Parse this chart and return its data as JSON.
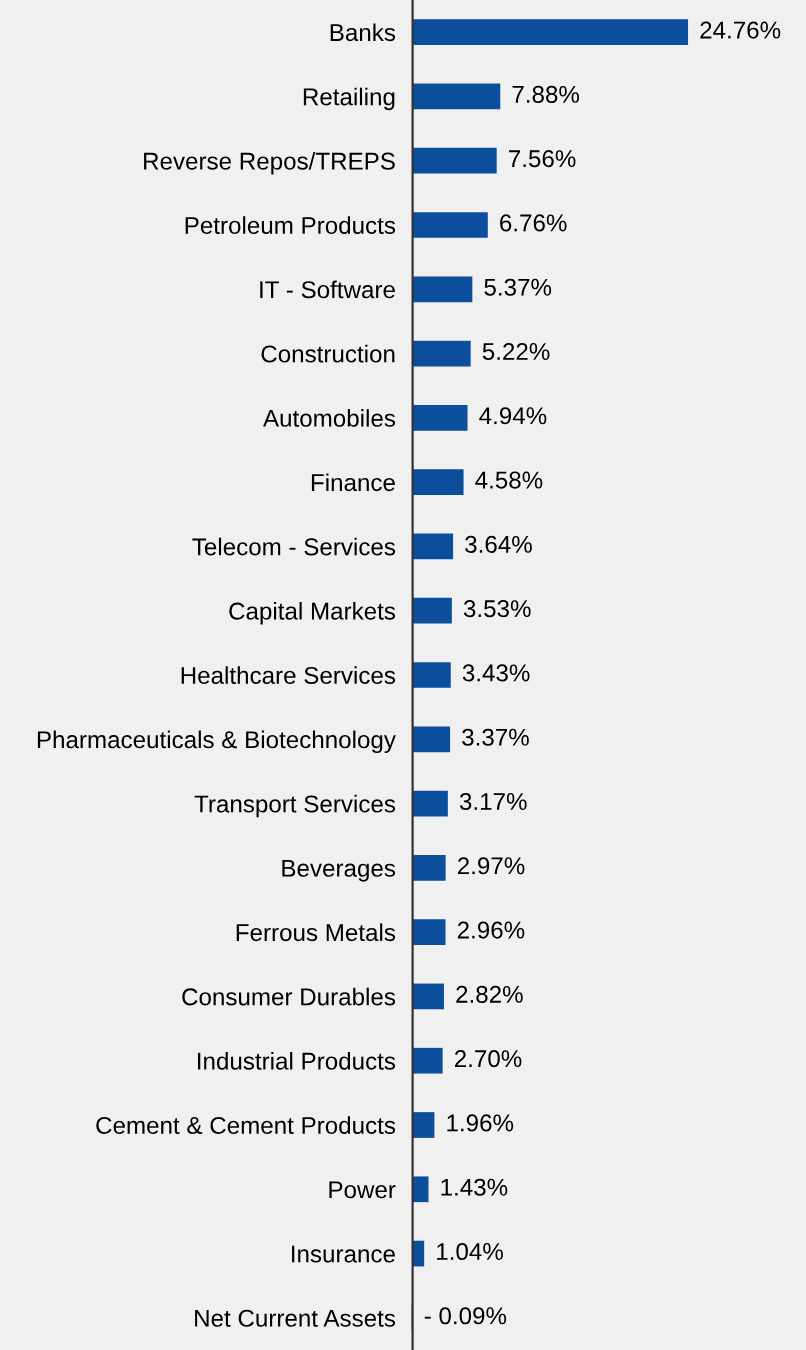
{
  "chart_data": {
    "type": "bar",
    "orientation": "horizontal",
    "categories": [
      "Banks",
      "Retailing",
      "Reverse Repos/TREPS",
      "Petroleum Products",
      "IT - Software",
      "Construction",
      "Automobiles",
      "Finance",
      "Telecom - Services",
      "Capital Markets",
      "Healthcare Services",
      "Pharmaceuticals & Biotechnology",
      "Transport Services",
      "Beverages",
      "Ferrous Metals",
      "Consumer Durables",
      "Industrial Products",
      "Cement & Cement Products",
      "Power",
      "Insurance",
      "Net Current Assets"
    ],
    "values": [
      24.76,
      7.88,
      7.56,
      6.76,
      5.37,
      5.22,
      4.94,
      4.58,
      3.64,
      3.53,
      3.43,
      3.37,
      3.17,
      2.97,
      2.96,
      2.82,
      2.7,
      1.96,
      1.43,
      1.04,
      -0.09
    ],
    "value_labels": [
      "24.76%",
      "7.88%",
      "7.56%",
      "6.76%",
      "5.37%",
      "5.22%",
      "4.94%",
      "4.58%",
      "3.64%",
      "3.53%",
      "3.43%",
      "3.37%",
      "3.17%",
      "2.97%",
      "2.96%",
      "2.82%",
      "2.70%",
      "1.96%",
      "1.43%",
      "1.04%",
      "- 0.09%"
    ],
    "color": "#0b4f9c",
    "xlim": [
      -0.5,
      35
    ],
    "tick_labels": "y",
    "grid": false,
    "legend": false
  }
}
